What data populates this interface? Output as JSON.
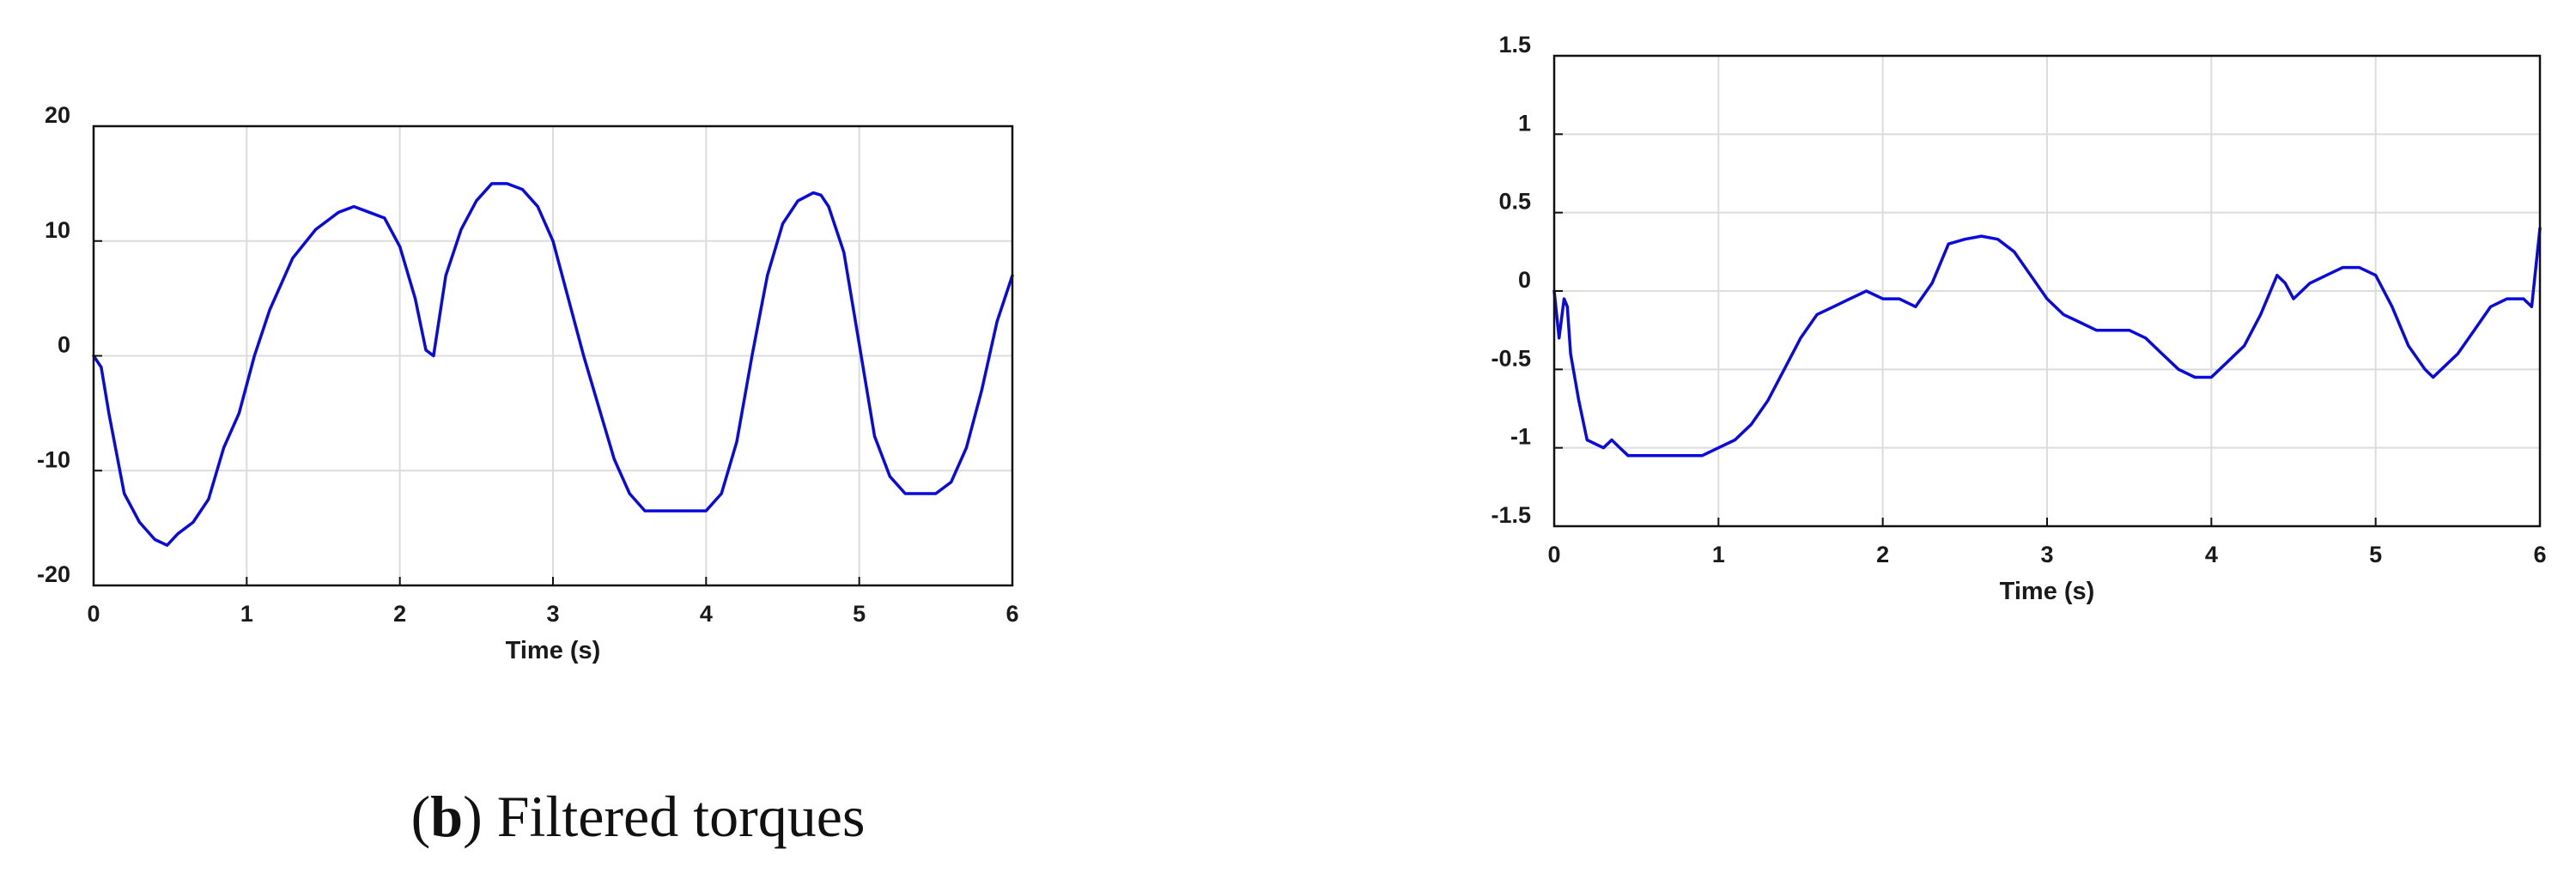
{
  "caption": {
    "letter": "b",
    "text": "Filtered torques"
  },
  "chart_data": [
    {
      "type": "line",
      "title": "",
      "xlabel": "Time (s)",
      "ylabel": "",
      "xlim": [
        0,
        6
      ],
      "ylim": [
        -20,
        20
      ],
      "xticks": [
        "0",
        "1",
        "2",
        "3",
        "4",
        "5",
        "6"
      ],
      "yticks": [
        "-20",
        "-10",
        "0",
        "10",
        "20"
      ],
      "grid": true,
      "line_color": "#0a0adc",
      "series": [
        {
          "x": [
            0,
            0.05,
            0.1,
            0.2,
            0.3,
            0.4,
            0.48,
            0.55,
            0.65,
            0.75,
            0.85,
            0.95,
            1.05,
            1.15,
            1.3,
            1.45,
            1.6,
            1.7,
            1.8,
            1.9,
            2.0,
            2.1,
            2.17,
            2.22,
            2.3,
            2.4,
            2.5,
            2.6,
            2.7,
            2.8,
            2.9,
            3.0,
            3.1,
            3.2,
            3.3,
            3.4,
            3.5,
            3.6,
            3.7,
            3.8,
            3.9,
            4.0,
            4.1,
            4.2,
            4.3,
            4.4,
            4.5,
            4.6,
            4.7,
            4.75,
            4.8,
            4.9,
            5.0,
            5.1,
            5.2,
            5.3,
            5.4,
            5.5,
            5.6,
            5.7,
            5.8,
            5.9,
            6.0
          ],
          "y": [
            0,
            -1,
            -5,
            -12,
            -14.5,
            -16,
            -16.5,
            -15.5,
            -14.5,
            -12.5,
            -8,
            -5,
            0,
            4,
            8.5,
            11,
            12.5,
            13,
            12.5,
            12,
            9.5,
            5,
            0.5,
            0,
            7,
            11,
            13.5,
            15,
            15,
            14.5,
            13,
            10,
            5,
            0,
            -4.5,
            -9,
            -12,
            -13.5,
            -13.5,
            -13.5,
            -13.5,
            -13.5,
            -12,
            -7.5,
            0,
            7,
            11.5,
            13.5,
            14.2,
            14,
            13,
            9,
            1,
            -7,
            -10.5,
            -12,
            -12,
            -12,
            -11,
            -8,
            -3,
            3,
            7
          ]
        }
      ]
    },
    {
      "type": "line",
      "title": "",
      "xlabel": "Time (s)",
      "ylabel": "",
      "xlim": [
        0,
        6
      ],
      "ylim": [
        -1.5,
        1.5
      ],
      "xticks": [
        "0",
        "1",
        "2",
        "3",
        "4",
        "5",
        "6"
      ],
      "yticks": [
        "-1.5",
        "-1",
        "-0.5",
        "0",
        "0.5",
        "1",
        "1.5"
      ],
      "grid": true,
      "line_color": "#0a0adc",
      "series": [
        {
          "x": [
            0,
            0.03,
            0.06,
            0.08,
            0.1,
            0.15,
            0.2,
            0.3,
            0.35,
            0.4,
            0.45,
            0.5,
            0.6,
            0.7,
            0.8,
            0.9,
            1.0,
            1.1,
            1.2,
            1.3,
            1.4,
            1.5,
            1.6,
            1.7,
            1.8,
            1.9,
            2.0,
            2.1,
            2.2,
            2.3,
            2.4,
            2.5,
            2.6,
            2.7,
            2.8,
            2.9,
            3.0,
            3.1,
            3.2,
            3.3,
            3.4,
            3.5,
            3.6,
            3.7,
            3.8,
            3.9,
            4.0,
            4.1,
            4.2,
            4.3,
            4.4,
            4.45,
            4.5,
            4.55,
            4.6,
            4.7,
            4.8,
            4.9,
            5.0,
            5.1,
            5.2,
            5.3,
            5.35,
            5.4,
            5.5,
            5.6,
            5.7,
            5.8,
            5.9,
            5.95,
            6.0
          ],
          "y": [
            0,
            -0.3,
            -0.05,
            -0.1,
            -0.4,
            -0.7,
            -0.95,
            -1.0,
            -0.95,
            -1.0,
            -1.05,
            -1.05,
            -1.05,
            -1.05,
            -1.05,
            -1.05,
            -1.0,
            -0.95,
            -0.85,
            -0.7,
            -0.5,
            -0.3,
            -0.15,
            -0.1,
            -0.05,
            0,
            -0.05,
            -0.05,
            -0.1,
            0.05,
            0.3,
            0.33,
            0.35,
            0.33,
            0.25,
            0.1,
            -0.05,
            -0.15,
            -0.2,
            -0.25,
            -0.25,
            -0.25,
            -0.3,
            -0.4,
            -0.5,
            -0.55,
            -0.55,
            -0.45,
            -0.35,
            -0.15,
            0.1,
            0.05,
            -0.05,
            0,
            0.05,
            0.1,
            0.15,
            0.15,
            0.1,
            -0.1,
            -0.35,
            -0.5,
            -0.55,
            -0.5,
            -0.4,
            -0.25,
            -0.1,
            -0.05,
            -0.05,
            -0.1,
            0.4
          ]
        }
      ]
    }
  ]
}
